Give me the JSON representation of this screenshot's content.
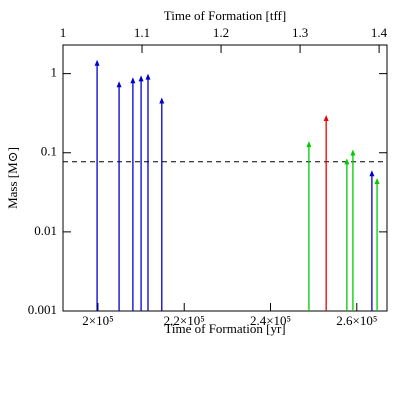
{
  "chart_data": {
    "type": "arrow",
    "xlabel": "Time of Formation [yr]",
    "x2label": "Time of Formation [tff]",
    "ylabel": "Mass [M⊙]",
    "log_y": true,
    "xlim": [
      191900,
      267000
    ],
    "xticks": [
      {
        "value": 200000,
        "label": "2×10⁵"
      },
      {
        "value": 220000,
        "label": "2.2×10⁵"
      },
      {
        "value": 240000,
        "label": "2.4×10⁵"
      },
      {
        "value": 260000,
        "label": "2.6×10⁵"
      }
    ],
    "x2lim": [
      1,
      1.41
    ],
    "x2ticks": [
      1,
      1.1,
      1.2,
      1.3,
      1.4
    ],
    "ylim": [
      0.001,
      2.3
    ],
    "yticks": [
      1,
      0.1,
      0.01,
      0.001
    ],
    "hline": 0.077,
    "series": [
      {
        "color": "#0000cc",
        "x": [
          199800,
          204900,
          208100,
          210000,
          211600,
          214800,
          263500
        ],
        "values": [
          1.5,
          0.8,
          0.9,
          0.95,
          1.0,
          0.5,
          0.06
        ]
      },
      {
        "color": "#00cc00",
        "x": [
          248900,
          257700,
          259100,
          264700
        ],
        "values": [
          0.14,
          0.085,
          0.11,
          0.048
        ]
      },
      {
        "color": "#ee0000",
        "x": [
          252900
        ],
        "values": [
          0.3
        ]
      }
    ]
  }
}
